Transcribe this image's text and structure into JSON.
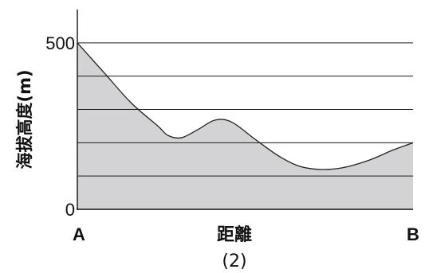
{
  "chart_data": {
    "type": "area",
    "title": "",
    "caption": "(2)",
    "ylabel": "海拔高度(m)",
    "xlabel": "距離",
    "x_start_label": "A",
    "x_end_label": "B",
    "ylim": [
      0,
      600
    ],
    "y_ticks": [
      0,
      500
    ],
    "y_tick_labels": [
      "0",
      "500"
    ],
    "gridlines": [
      100,
      200,
      300,
      400,
      500
    ],
    "grid": true,
    "x": [
      0,
      0.08,
      0.16,
      0.24,
      0.27,
      0.31,
      0.36,
      0.41,
      0.46,
      0.53,
      0.6,
      0.66,
      0.72,
      0.79,
      0.87,
      0.94,
      1.0
    ],
    "series": [
      {
        "values": [
          500,
          410,
          320,
          250,
          222,
          215,
          240,
          268,
          262,
          210,
          160,
          130,
          120,
          125,
          148,
          178,
          200
        ]
      }
    ],
    "colors": {
      "fill": "#d3d3d5",
      "line": "#222222",
      "grid": "#1a1a1a",
      "axis": "#111111"
    }
  }
}
